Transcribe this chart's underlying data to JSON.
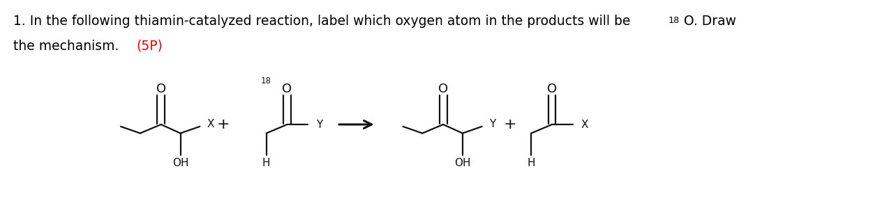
{
  "background_color": "#ffffff",
  "title_line1_main": "1. In the following thiamin-catalyzed reaction, label which oxygen atom in the products will be ",
  "title_line1_sup": "18",
  "title_line1_end": "O. Draw",
  "title_line2_main": "the mechanism. ",
  "title_line2_colored": "(5P)",
  "title_color": "#000000",
  "title_colored_color": "#ff0000",
  "title_fontsize": 13.5,
  "chem_color": "#111111",
  "fig_width": 12.84,
  "fig_height": 2.92,
  "struct_lw": 1.6
}
